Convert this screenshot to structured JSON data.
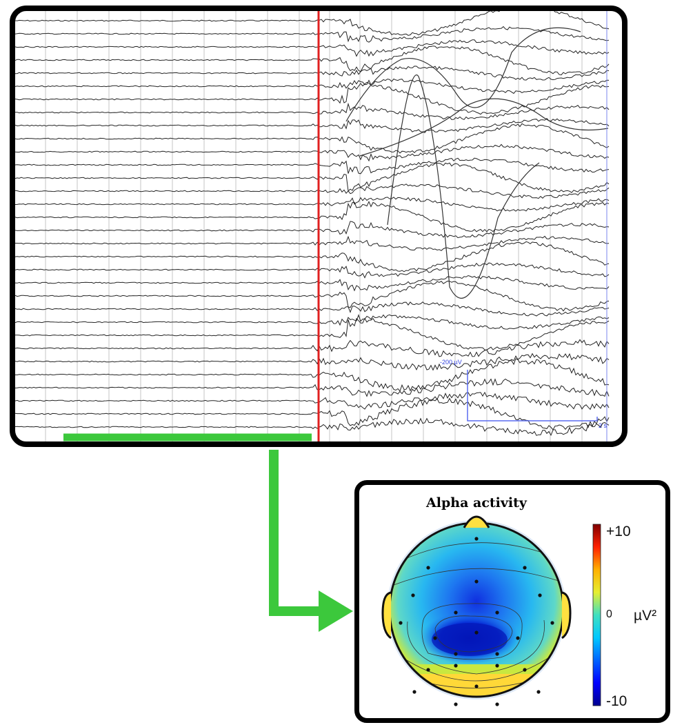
{
  "eeg": {
    "scale_label": "-200 µV",
    "scale_tick": "2 s",
    "colors": {
      "trace": "#222222",
      "grid": "#bdbdbd",
      "stimulus_marker": "#e02020",
      "scale_bar": "#5a6cf0"
    }
  },
  "topomap": {
    "title": "Alpha activity",
    "colorbar": {
      "max_label": "+10",
      "mid_label": "0",
      "min_label": "-10",
      "unit": "µV²"
    }
  },
  "connector": {
    "color": "#3cc83c"
  }
}
